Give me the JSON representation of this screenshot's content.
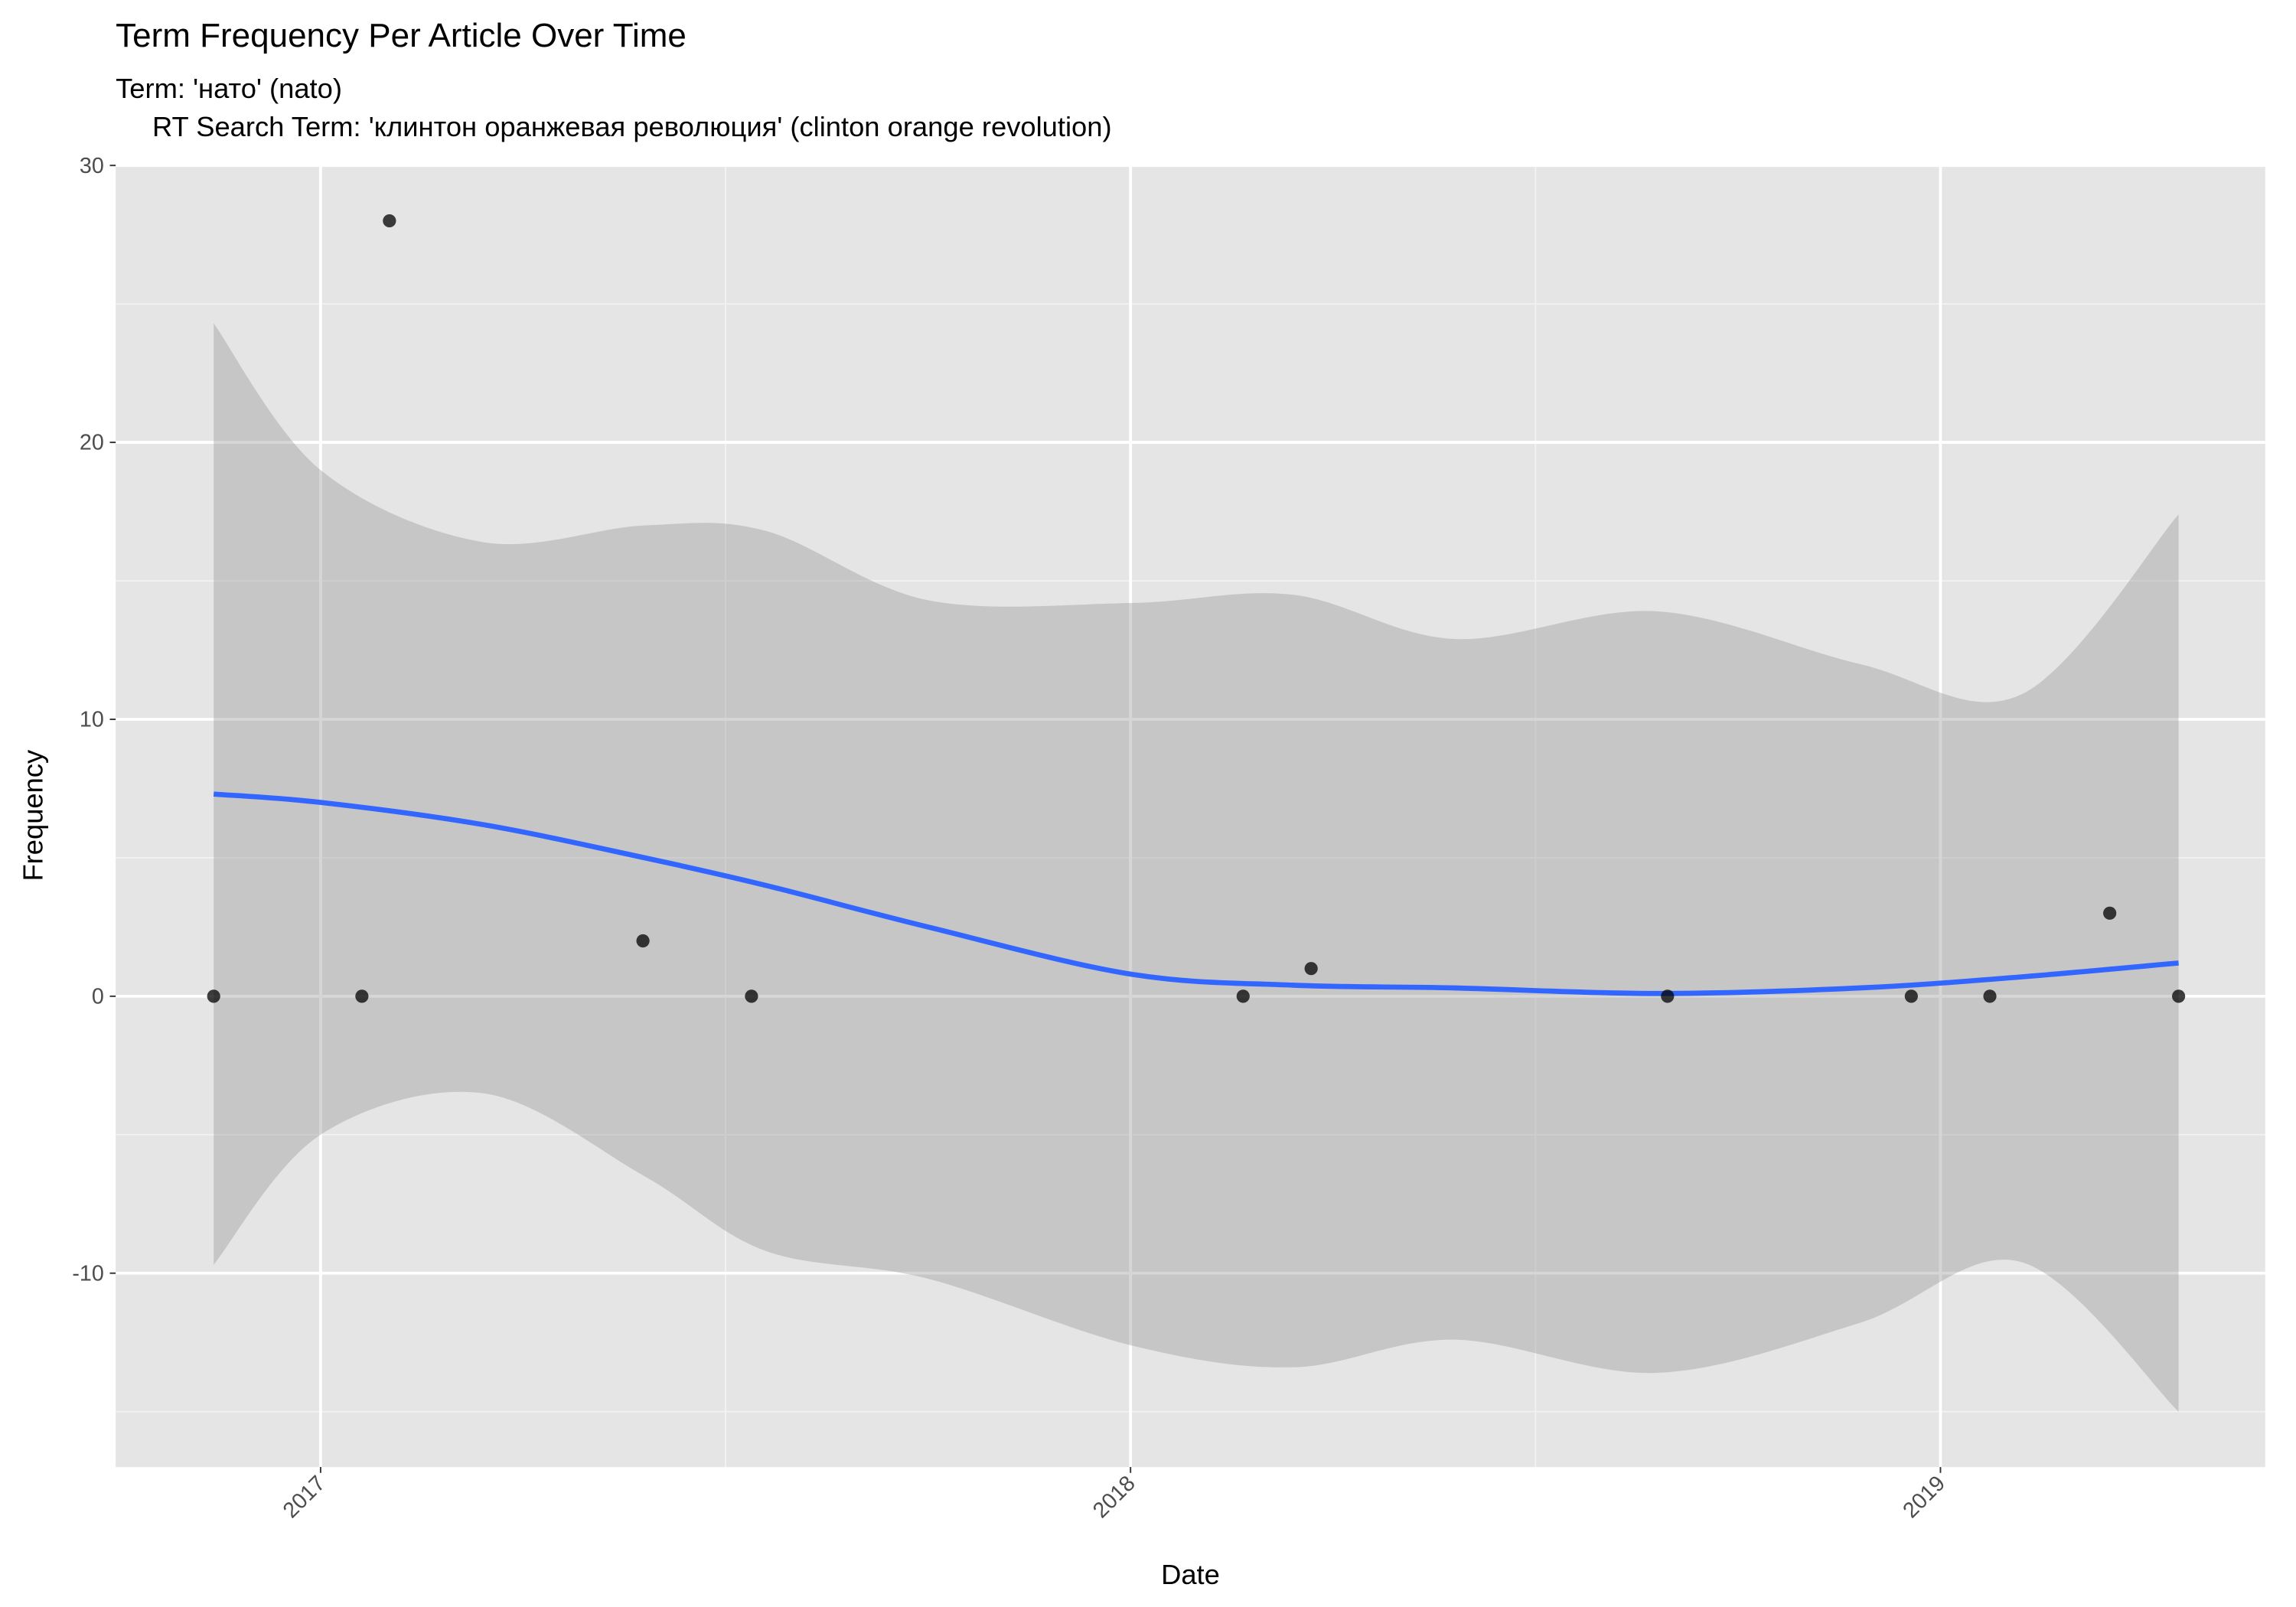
{
  "chart_data": {
    "type": "scatter",
    "title": "Term Frequency Per Article Over Time",
    "subtitle": [
      "Term: 'нато' (nato)",
      "RT Search Term: 'клинтон оранжевая революция' (clinton orange revolution)"
    ],
    "x_label": "Date",
    "y_label": "Frequency",
    "x": [
      2016.868,
      2017.051,
      2017.085,
      2017.398,
      2017.532,
      2018.139,
      2018.223,
      2018.663,
      2018.964,
      2019.061,
      2019.209,
      2019.294
    ],
    "values": [
      0,
      0,
      28,
      2,
      0,
      0,
      1,
      0,
      0,
      0,
      3,
      0
    ],
    "color": "#000000",
    "smooth": {
      "color": "#3366ff",
      "band_color": "#999999",
      "x": [
        2016.868,
        2017.0,
        2017.2,
        2017.4,
        2017.55,
        2017.75,
        2018.0,
        2018.2,
        2018.4,
        2018.65,
        2018.9,
        2019.1,
        2019.294
      ],
      "values": [
        7.3,
        7.0,
        6.2,
        5.0,
        4.0,
        2.5,
        0.8,
        0.4,
        0.3,
        0.1,
        0.3,
        0.7,
        1.2
      ],
      "upper": [
        24.3,
        19.0,
        16.4,
        17.0,
        16.8,
        14.3,
        14.2,
        14.5,
        12.9,
        13.9,
        12.0,
        10.9,
        17.4
      ],
      "lower": [
        -9.7,
        -5.0,
        -3.5,
        -6.5,
        -9.2,
        -10.2,
        -12.6,
        -13.4,
        -12.4,
        -13.6,
        -11.8,
        -9.6,
        -15.0
      ]
    },
    "xlim": [
      2016.747,
      2019.401
    ],
    "ylim": [
      -17.0,
      30
    ],
    "xticks": [
      2017,
      2018,
      2019
    ],
    "yticks": [
      -10,
      0,
      10,
      20,
      30
    ],
    "minor_xticks": [
      2017.5,
      2018.5
    ],
    "minor_yticks": [
      -15,
      -5,
      5,
      15,
      25
    ],
    "grid": true
  }
}
